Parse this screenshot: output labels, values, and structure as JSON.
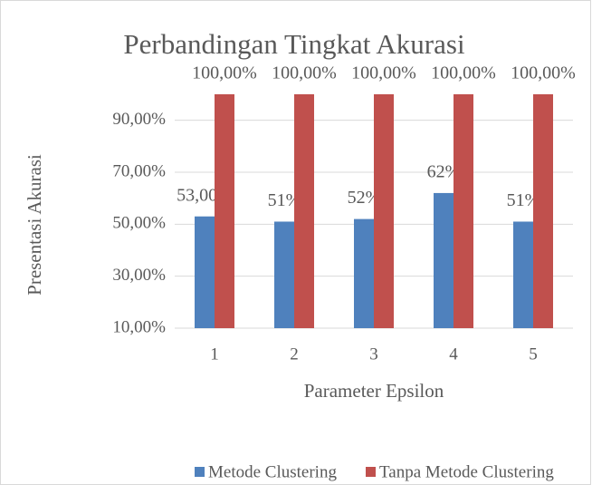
{
  "chart_data": {
    "type": "bar",
    "title": "Perbandingan Tingkat Akurasi",
    "y_label": "Presentasi Akurasi",
    "x_label": "Parameter Epsilon",
    "categories": [
      "1",
      "2",
      "3",
      "4",
      "5"
    ],
    "series": [
      {
        "name": "Metode Clustering",
        "color": "#4f81bd",
        "values": [
          53,
          51,
          52,
          62,
          51
        ],
        "value_labels": [
          "53,00%",
          "51%",
          "52%",
          "62%",
          "51%"
        ]
      },
      {
        "name": "Tanpa Metode Clustering",
        "color": "#c0504d",
        "values": [
          100,
          100,
          100,
          100,
          100
        ],
        "value_labels": [
          "100,00%",
          "100,00%",
          "100,00%",
          "100,00%",
          "100,00%"
        ]
      }
    ],
    "ylim": [
      10,
      100
    ],
    "yticks": [
      {
        "value": 10,
        "label": "10,00%"
      },
      {
        "value": 30,
        "label": "30,00%"
      },
      {
        "value": 50,
        "label": "50,00%"
      },
      {
        "value": 70,
        "label": "70,00%"
      },
      {
        "value": 90,
        "label": "90,00%"
      }
    ],
    "grid": true,
    "legend": "bottom"
  }
}
